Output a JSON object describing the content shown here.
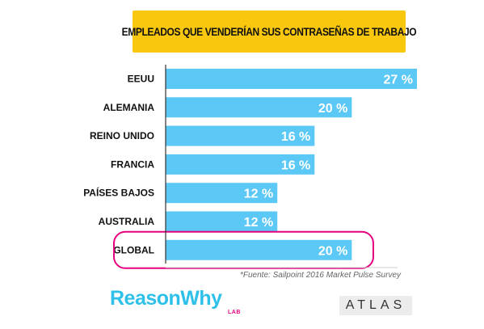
{
  "chart_data": {
    "type": "bar",
    "orientation": "horizontal",
    "title": "EMPLEADOS QUE VENDERÍAN SUS CONTRASEÑAS DE TRABAJO",
    "categories": [
      "EEUU",
      "ALEMANIA",
      "REINO UNIDO",
      "FRANCIA",
      "PAÍSES BAJOS",
      "AUSTRALIA",
      "GLOBAL"
    ],
    "values": [
      27,
      20,
      16,
      16,
      12,
      12,
      20
    ],
    "value_labels": [
      "27 %",
      "20 %",
      "16 %",
      "16 %",
      "12 %",
      "12 %",
      "20 %"
    ],
    "highlighted_category": "GLOBAL",
    "xlim": [
      0,
      27
    ],
    "grid": false,
    "colors": {
      "bar": "#5bc8f5",
      "highlight_outline": "#e6007e",
      "title_background": "#f9c80e",
      "axis": "#333333"
    }
  },
  "footer": {
    "source": "*Fuente: Sailpoint 2016 Market Pulse Survey",
    "brand": "ReasonWhy",
    "brand_sub": "LAB",
    "partner": "ATLAS"
  }
}
